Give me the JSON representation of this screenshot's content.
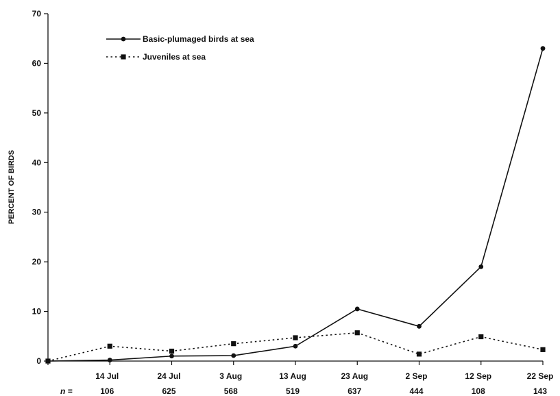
{
  "chart_data": {
    "type": "line",
    "title": "",
    "xlabel": "",
    "ylabel": "PERCENT OF BIRDS",
    "ylim": [
      0,
      70
    ],
    "yticks": [
      0,
      10,
      20,
      30,
      40,
      50,
      60,
      70
    ],
    "x_offset_days": [
      -10,
      0,
      10,
      20,
      30,
      40,
      50,
      60,
      70
    ],
    "tick_labels": [
      "14 Jul",
      "24 Jul",
      "3 Aug",
      "13 Aug",
      "23 Aug",
      "2 Sep",
      "12 Sep",
      "22 Sep"
    ],
    "n_label": "n =",
    "n_values": [
      "106",
      "625",
      "568",
      "519",
      "637",
      "444",
      "108",
      "143"
    ],
    "grid": false,
    "legend_position": "top-left",
    "series": [
      {
        "name": "Basic-plumaged birds at sea",
        "style": "solid",
        "marker": "circle",
        "color": "#111111",
        "values": [
          0,
          0.2,
          1.0,
          1.1,
          3.0,
          10.5,
          7.0,
          19.0,
          63.0
        ]
      },
      {
        "name": "Juveniles at sea",
        "style": "dotted",
        "marker": "square",
        "color": "#111111",
        "values": [
          0,
          3.0,
          2.0,
          3.5,
          4.7,
          5.7,
          1.4,
          4.9,
          2.3
        ]
      }
    ]
  }
}
